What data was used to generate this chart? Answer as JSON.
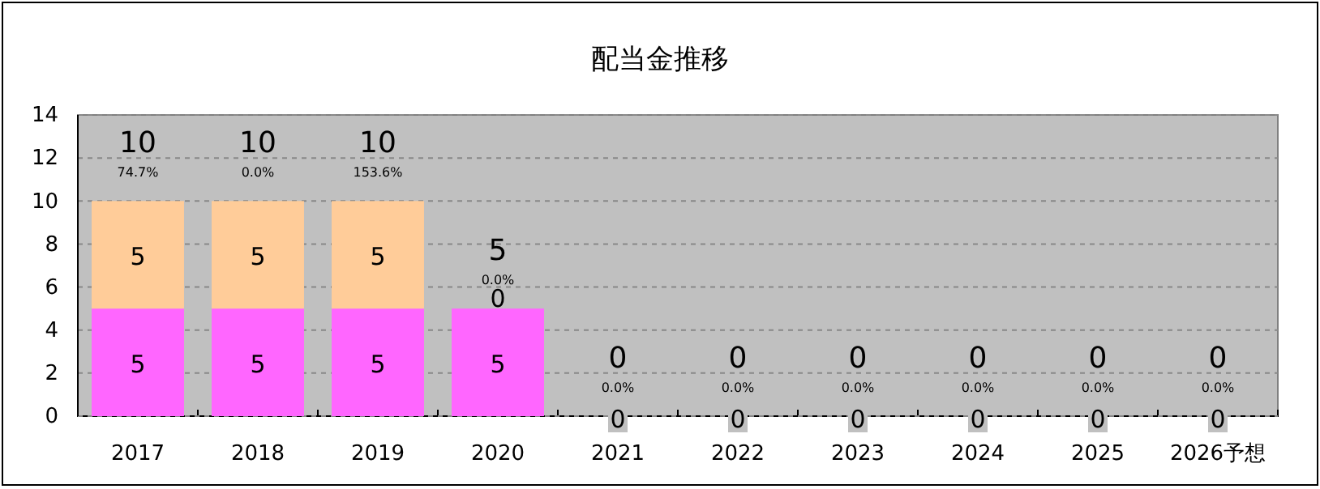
{
  "chart_data": {
    "type": "bar",
    "title": "配当金推移",
    "stacked": true,
    "categories": [
      "2017",
      "2018",
      "2019",
      "2020",
      "2021",
      "2022",
      "2023",
      "2024",
      "2025",
      "2026予想"
    ],
    "series": [
      {
        "color": "#ff66ff",
        "values": [
          5,
          5,
          5,
          5,
          0,
          0,
          0,
          0,
          0,
          0
        ],
        "value_labels": [
          "5",
          "5",
          "5",
          "5",
          "0",
          "0",
          "0",
          "0",
          "0",
          "0"
        ]
      },
      {
        "color": "#ffcc99",
        "values": [
          5,
          5,
          5,
          0,
          0,
          0,
          0,
          0,
          0,
          0
        ],
        "value_labels": [
          "5",
          "5",
          "5",
          "0",
          null,
          null,
          null,
          null,
          null,
          null
        ]
      }
    ],
    "totals": [
      "10",
      "10",
      "10",
      "5",
      "0",
      "0",
      "0",
      "0",
      "0",
      "0"
    ],
    "annotations": [
      {
        "text": "74.7%",
        "x": "2017",
        "y": 10
      },
      {
        "text": "0.0%",
        "x": "2018",
        "y": 10
      },
      {
        "text": "153.6%",
        "x": "2019",
        "y": 10
      },
      {
        "text": "0.0%",
        "x": "2020",
        "y": 5
      },
      {
        "text": "0.0%",
        "x": "2021",
        "y": 0
      },
      {
        "text": "0.0%",
        "x": "2022",
        "y": 0
      },
      {
        "text": "0.0%",
        "x": "2023",
        "y": 0
      },
      {
        "text": "0.0%",
        "x": "2024",
        "y": 0
      },
      {
        "text": "0.0%",
        "x": "2025",
        "y": 0
      },
      {
        "text": "0.0%",
        "x": "2026予想",
        "y": 0
      }
    ],
    "ylim": [
      0,
      14
    ],
    "yticks": [
      0,
      2,
      4,
      6,
      8,
      10,
      12,
      14
    ],
    "grid": "y"
  }
}
